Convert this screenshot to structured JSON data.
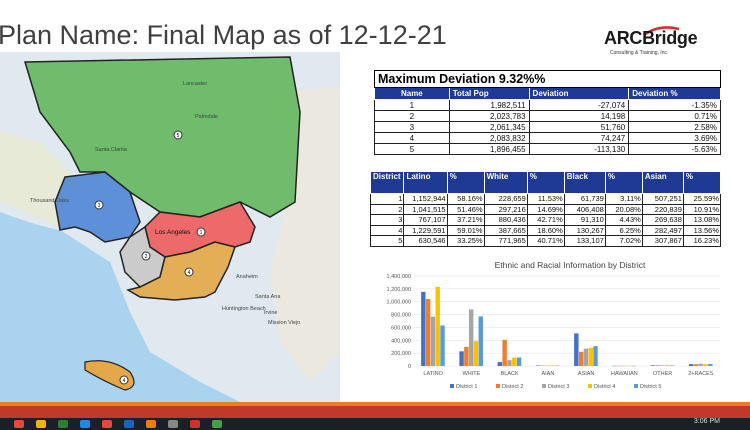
{
  "slide": {
    "title": "Plan Name: Final Map as of 12-12-21",
    "logo_main": "ARCBridge",
    "logo_sub": "Consulting & Training, Inc."
  },
  "map": {
    "districts": [
      "1",
      "2",
      "3",
      "4",
      "5"
    ],
    "place_labels": [
      "Lancaster",
      "Palmdale",
      "Santa Clarita",
      "Thousand Oaks",
      "Los Angeles",
      "Anaheim",
      "Santa Ana",
      "Huntington Beach",
      "Irvine",
      "Mission Viejo"
    ],
    "colors": {
      "d1": "#ef5b5b",
      "d2": "#c9c9c9",
      "d3": "#4f86d6",
      "d4": "#e4a84a",
      "d5": "#5fb55a"
    }
  },
  "deviation_table": {
    "title": "Maximum Deviation 9.32%%",
    "headers": [
      "Name",
      "Total Pop",
      "Deviation",
      "Deviation %"
    ],
    "rows": [
      [
        "1",
        "1,982,511",
        "-27,074",
        "-1.35%"
      ],
      [
        "2",
        "2,023,783",
        "14,198",
        "0.71%"
      ],
      [
        "3",
        "2,061,345",
        "51,760",
        "2.58%"
      ],
      [
        "4",
        "2,083,832",
        "74,247",
        "3.69%"
      ],
      [
        "5",
        "1,896,455",
        "-113,130",
        "-5.63%"
      ]
    ]
  },
  "ethnic_table": {
    "headers": [
      "District",
      "Latino",
      "%",
      "White",
      "%",
      "Black",
      "%",
      "Asian",
      "%"
    ],
    "rows": [
      [
        "1",
        "1,152,944",
        "58.16%",
        "228,659",
        "11.53%",
        "61,739",
        "3.11%",
        "507,251",
        "25.59%"
      ],
      [
        "2",
        "1,041,515",
        "51.46%",
        "297,216",
        "14.69%",
        "406,408",
        "20.08%",
        "220,839",
        "10.91%"
      ],
      [
        "3",
        "767,107",
        "37.21%",
        "880,436",
        "42.71%",
        "91,310",
        "4.43%",
        "269,638",
        "13.08%"
      ],
      [
        "4",
        "1,229,591",
        "59.01%",
        "387,665",
        "18.60%",
        "130,267",
        "6.25%",
        "282,497",
        "13.56%"
      ],
      [
        "5",
        "630,546",
        "33.25%",
        "771,965",
        "40.71%",
        "133,107",
        "7.02%",
        "307,867",
        "16.23%"
      ]
    ]
  },
  "chart_data": {
    "type": "bar",
    "title": "Ethnic and Racial Information by District",
    "categories": [
      "LATINO",
      "WHITE",
      "BLACK",
      "AIAN",
      "ASIAN",
      "HAWAIIAN",
      "OTHER",
      "2+RACES"
    ],
    "ylim": [
      0,
      1400000
    ],
    "yticks": [
      "0",
      "200,000",
      "400,000",
      "600,000",
      "800,000",
      "1,000,000",
      "1,200,000",
      "1,400,000"
    ],
    "grid": true,
    "legend_position": "bottom",
    "series": [
      {
        "name": "District 1",
        "color": "#4472c4",
        "values": [
          1152944,
          228659,
          61739,
          8000,
          507251,
          3000,
          10000,
          30000
        ]
      },
      {
        "name": "District 2",
        "color": "#ed7d31",
        "values": [
          1041515,
          297216,
          406408,
          7000,
          220839,
          4000,
          10000,
          28000
        ]
      },
      {
        "name": "District 3",
        "color": "#a5a5a5",
        "values": [
          767107,
          880436,
          91310,
          6000,
          269638,
          3000,
          9000,
          35000
        ]
      },
      {
        "name": "District 4",
        "color": "#ffc000",
        "values": [
          1229591,
          387665,
          130267,
          9000,
          282497,
          5000,
          12000,
          30000
        ]
      },
      {
        "name": "District 5",
        "color": "#5b9bd5",
        "values": [
          630546,
          771965,
          133107,
          6000,
          307867,
          3000,
          8000,
          32000
        ]
      }
    ]
  },
  "taskbar": {
    "clock": "3:06 PM",
    "icon_colors": [
      "#e8453c",
      "#f5b400",
      "#2e7d32",
      "#1e88e5",
      "#e8453c",
      "#1565c0",
      "#f57c00",
      "#888888",
      "#d32f2f",
      "#43a047"
    ]
  }
}
